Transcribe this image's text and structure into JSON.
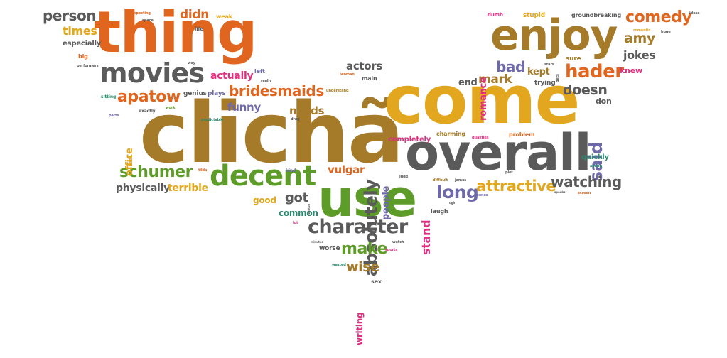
{
  "palette": {
    "gold": "#e3a71f",
    "orange": "#e0651f",
    "brown": "#a57a29",
    "green": "#5e9c2a",
    "gray": "#5a5a5a",
    "purple": "#6e69a9",
    "pink": "#e02f80",
    "teal": "#2a8a6d"
  },
  "words": [
    {
      "text": "clichã",
      "color": "brown",
      "weight": 100
    },
    {
      "text": "come",
      "color": "gold",
      "weight": 92
    },
    {
      "text": "thing",
      "color": "orange",
      "weight": 76
    },
    {
      "text": "use",
      "color": "green",
      "weight": 70
    },
    {
      "text": "overall",
      "color": "gray",
      "weight": 67
    },
    {
      "text": "enjoy",
      "color": "brown",
      "weight": 58
    },
    {
      "text": "movies",
      "color": "gray",
      "weight": 40
    },
    {
      "text": "decent",
      "color": "green",
      "weight": 39
    },
    {
      "text": "absolutely",
      "color": "gray",
      "weight": 28
    },
    {
      "text": "character",
      "color": "gray",
      "weight": 27
    },
    {
      "text": "said",
      "color": "purple",
      "weight": 24
    },
    {
      "text": "hader",
      "color": "orange",
      "weight": 22
    },
    {
      "text": "comedy",
      "color": "orange",
      "weight": 20
    },
    {
      "text": "apatow",
      "color": "orange",
      "weight": 20
    },
    {
      "text": "bridesmaids",
      "color": "orange",
      "weight": 20
    },
    {
      "text": "schumer",
      "color": "green",
      "weight": 19
    },
    {
      "text": "long",
      "color": "purple",
      "weight": 20
    },
    {
      "text": "attractive",
      "color": "gold",
      "weight": 18
    },
    {
      "text": "watching",
      "color": "gray",
      "weight": 18
    },
    {
      "text": "person",
      "color": "gray",
      "weight": 18
    },
    {
      "text": "make",
      "color": "green",
      "weight": 18
    },
    {
      "text": "bad",
      "color": "purple",
      "weight": 18
    },
    {
      "text": "amy",
      "color": "brown",
      "weight": 16
    },
    {
      "text": "doesn",
      "color": "gray",
      "weight": 16
    },
    {
      "text": "mark",
      "color": "brown",
      "weight": 15
    },
    {
      "text": "wise",
      "color": "brown",
      "weight": 15
    },
    {
      "text": "didn",
      "color": "orange",
      "weight": 15
    },
    {
      "text": "got",
      "color": "gray",
      "weight": 14
    },
    {
      "text": "funny",
      "color": "purple",
      "weight": 13
    },
    {
      "text": "vulgar",
      "color": "orange",
      "weight": 13
    },
    {
      "text": "times",
      "color": "gold",
      "weight": 13
    },
    {
      "text": "jokes",
      "color": "gray",
      "weight": 13
    },
    {
      "text": "stand",
      "color": "pink",
      "weight": 13
    },
    {
      "text": "physically",
      "color": "gray",
      "weight": 13
    },
    {
      "text": "terrible",
      "color": "gold",
      "weight": 13
    },
    {
      "text": "actually",
      "color": "pink",
      "weight": 12
    },
    {
      "text": "actors",
      "color": "gray",
      "weight": 12
    },
    {
      "text": "needs",
      "color": "brown",
      "weight": 12
    },
    {
      "text": "people",
      "color": "purple",
      "weight": 11
    },
    {
      "text": "office",
      "color": "gold",
      "weight": 11
    },
    {
      "text": "romance",
      "color": "pink",
      "weight": 11
    },
    {
      "text": "kept",
      "color": "brown",
      "weight": 11
    },
    {
      "text": "end",
      "color": "gray",
      "weight": 10
    },
    {
      "text": "writing",
      "color": "pink",
      "weight": 10
    },
    {
      "text": "knew",
      "color": "pink",
      "weight": 9
    },
    {
      "text": "don",
      "color": "gray",
      "weight": 9
    },
    {
      "text": "good",
      "color": "gold",
      "weight": 9
    },
    {
      "text": "common",
      "color": "teal",
      "weight": 9
    },
    {
      "text": "completely",
      "color": "pink",
      "weight": 8
    },
    {
      "text": "quickly",
      "color": "teal",
      "weight": 8
    },
    {
      "text": "especially",
      "color": "gray",
      "weight": 8
    },
    {
      "text": "sure",
      "color": "brown",
      "weight": 8
    },
    {
      "text": "trying",
      "color": "gray",
      "weight": 8
    },
    {
      "text": "plays",
      "color": "purple",
      "weight": 8
    },
    {
      "text": "genius",
      "color": "gray",
      "weight": 7
    },
    {
      "text": "worse",
      "color": "gray",
      "weight": 7
    },
    {
      "text": "stupid",
      "color": "gold",
      "weight": 7
    },
    {
      "text": "groundbreaking",
      "color": "gray",
      "weight": 7
    },
    {
      "text": "charming",
      "color": "brown",
      "weight": 7
    },
    {
      "text": "problem",
      "color": "orange",
      "weight": 7
    },
    {
      "text": "laugh",
      "color": "gray",
      "weight": 7
    },
    {
      "text": "left",
      "color": "purple",
      "weight": 7
    },
    {
      "text": "main",
      "color": "gray",
      "weight": 6
    },
    {
      "text": "weak",
      "color": "gold",
      "weight": 6
    },
    {
      "text": "sex",
      "color": "gray",
      "weight": 6
    },
    {
      "text": "big",
      "color": "orange",
      "weight": 6
    },
    {
      "text": "life",
      "color": "gray",
      "weight": 6
    },
    {
      "text": "feel",
      "color": "gold",
      "weight": 6
    },
    {
      "text": "dumb",
      "color": "pink",
      "weight": 6
    },
    {
      "text": "sitting",
      "color": "teal",
      "weight": 6
    },
    {
      "text": "exactly",
      "color": "gray",
      "weight": 6
    },
    {
      "text": "kind",
      "color": "purple",
      "weight": 6
    },
    {
      "text": "ideas",
      "color": "gray",
      "weight": 5
    },
    {
      "text": "romantic",
      "color": "gold",
      "weight": 5
    },
    {
      "text": "huge",
      "color": "gray",
      "weight": 5
    },
    {
      "text": "stars",
      "color": "gray",
      "weight": 5
    },
    {
      "text": "gets",
      "color": "gray",
      "weight": 5
    },
    {
      "text": "woman",
      "color": "orange",
      "weight": 5
    },
    {
      "text": "understand",
      "color": "brown",
      "weight": 5
    },
    {
      "text": "really",
      "color": "gray",
      "weight": 5
    },
    {
      "text": "way",
      "color": "gray",
      "weight": 5
    },
    {
      "text": "expecting",
      "color": "orange",
      "weight": 5
    },
    {
      "text": "space",
      "color": "gray",
      "weight": 5
    },
    {
      "text": "performers",
      "color": "gray",
      "weight": 5
    },
    {
      "text": "parts",
      "color": "purple",
      "weight": 5
    },
    {
      "text": "work",
      "color": "green",
      "weight": 5
    },
    {
      "text": "predictable",
      "color": "teal",
      "weight": 5
    },
    {
      "text": "drag",
      "color": "gray",
      "weight": 5
    },
    {
      "text": "tilda",
      "color": "orange",
      "weight": 5
    },
    {
      "text": "swinton",
      "color": "gray",
      "weight": 4
    },
    {
      "text": "lot",
      "color": "pink",
      "weight": 5
    },
    {
      "text": "judd",
      "color": "gray",
      "weight": 5
    },
    {
      "text": "minutes",
      "color": "gray",
      "weight": 4
    },
    {
      "text": "wasted",
      "color": "teal",
      "weight": 5
    },
    {
      "text": "watch",
      "color": "gray",
      "weight": 5
    },
    {
      "text": "sports",
      "color": "pink",
      "weight": 5
    },
    {
      "text": "difficult",
      "color": "brown",
      "weight": 5
    },
    {
      "text": "james",
      "color": "gray",
      "weight": 5
    },
    {
      "text": "ugh",
      "color": "gray",
      "weight": 4
    },
    {
      "text": "scenes",
      "color": "purple",
      "weight": 5
    },
    {
      "text": "plot",
      "color": "gray",
      "weight": 5
    },
    {
      "text": "qualities",
      "color": "pink",
      "weight": 5
    },
    {
      "text": "spanks",
      "color": "gray",
      "weight": 4
    },
    {
      "text": "screen",
      "color": "orange",
      "weight": 5
    },
    {
      "text": "acting",
      "color": "teal",
      "weight": 5
    }
  ]
}
